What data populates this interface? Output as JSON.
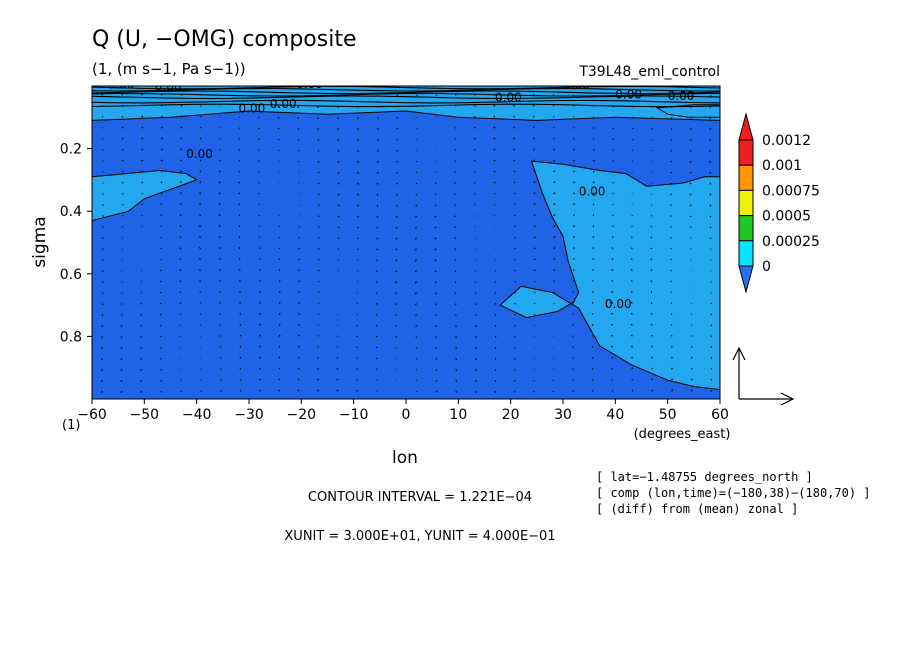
{
  "chart_data": {
    "type": "contour",
    "title": "Q (U, −OMG) composite",
    "subtitle": "(1, (m s−1, Pa s−1))",
    "run_label": "T39L48_eml_control",
    "xlabel": "lon",
    "xunits": "(degrees_east)",
    "ylabel": "sigma",
    "corner_label": "(1)",
    "xlim": [
      -60,
      60
    ],
    "ylim": [
      1.0,
      0.0
    ],
    "y_inverted": true,
    "xticks": [
      -60,
      -50,
      -40,
      -30,
      -20,
      -10,
      0,
      10,
      20,
      30,
      40,
      50,
      60
    ],
    "xtick_labels": [
      "−60",
      "−50",
      "−40",
      "−30",
      "−20",
      "−10",
      "0",
      "10",
      "20",
      "30",
      "40",
      "50",
      "60"
    ],
    "yticks": [
      0.2,
      0.4,
      0.6,
      0.8
    ],
    "ytick_labels": [
      "0.2",
      "0.4",
      "0.6",
      "0.8"
    ],
    "colorbar": {
      "levels": [
        0,
        0.00025,
        0.0005,
        0.00075,
        0.001,
        0.0012
      ],
      "labels": [
        "0",
        "0.00025",
        "0.0005",
        "0.00075",
        "0.001",
        "0.0012"
      ],
      "colors": [
        "#1e64e6",
        "#00e6ff",
        "#22c822",
        "#f0f000",
        "#ff9600",
        "#f01e1e"
      ],
      "below_color": "#2870f0",
      "above_color": "#f01e1e"
    },
    "field_colors": {
      "background": "#1f63e6",
      "light": "#23a8f0"
    },
    "contour_labels": [
      "0.00",
      "0.00",
      "0.00",
      "0.00",
      "0.00",
      "0.00",
      "0.00",
      "0.00",
      "0.00",
      "0.00",
      "0.00",
      "0.00"
    ],
    "light_regions": [
      {
        "name": "west-tongue",
        "points": [
          [
            -60,
            0.29
          ],
          [
            -47,
            0.27
          ],
          [
            -42,
            0.28
          ],
          [
            -40,
            0.3
          ],
          [
            -45,
            0.33
          ],
          [
            -50,
            0.36
          ],
          [
            -53,
            0.4
          ],
          [
            -60,
            0.43
          ]
        ]
      },
      {
        "name": "upper-band",
        "points": [
          [
            -60,
            0.0
          ],
          [
            60,
            0.0
          ],
          [
            60,
            0.11
          ],
          [
            40,
            0.1
          ],
          [
            25,
            0.11
          ],
          [
            10,
            0.1
          ],
          [
            0,
            0.08
          ],
          [
            -15,
            0.09
          ],
          [
            -30,
            0.08
          ],
          [
            -45,
            0.1
          ],
          [
            -60,
            0.11
          ]
        ]
      },
      {
        "name": "east-region",
        "points": [
          [
            24,
            0.24
          ],
          [
            30,
            0.25
          ],
          [
            37,
            0.27
          ],
          [
            42,
            0.28
          ],
          [
            46,
            0.32
          ],
          [
            53,
            0.31
          ],
          [
            57,
            0.29
          ],
          [
            60,
            0.29
          ],
          [
            60,
            0.97
          ],
          [
            55,
            0.96
          ],
          [
            50,
            0.94
          ],
          [
            43,
            0.89
          ],
          [
            37,
            0.83
          ],
          [
            33,
            0.71
          ],
          [
            28,
            0.66
          ],
          [
            22,
            0.64
          ],
          [
            18,
            0.7
          ],
          [
            23,
            0.74
          ],
          [
            29,
            0.72
          ],
          [
            32,
            0.69
          ],
          [
            33,
            0.66
          ],
          [
            31,
            0.56
          ],
          [
            30,
            0.48
          ],
          [
            28,
            0.42
          ],
          [
            26,
            0.34
          ]
        ]
      },
      {
        "name": "east-blob-top",
        "points": [
          [
            48,
            0.07
          ],
          [
            55,
            0.06
          ],
          [
            60,
            0.06
          ],
          [
            60,
            0.1
          ],
          [
            54,
            0.1
          ],
          [
            50,
            0.09
          ]
        ]
      }
    ],
    "vectors": {
      "grid_lon_step": 3.75,
      "grid_sigma_step": 0.035,
      "note": "small wind arrows"
    },
    "vector_legend": {
      "xunit_label": "XUNIT = 3.000E+01, YUNIT = 4.000E−01"
    },
    "annotations": {
      "contour_interval": "CONTOUR INTERVAL = 1.221E−04",
      "info_lines": [
        "[ lat=−1.48755 degrees_north ]",
        "[ comp (lon,time)=(−180,38)−(180,70) ]",
        "[ (diff) from (mean) zonal ]"
      ]
    }
  }
}
